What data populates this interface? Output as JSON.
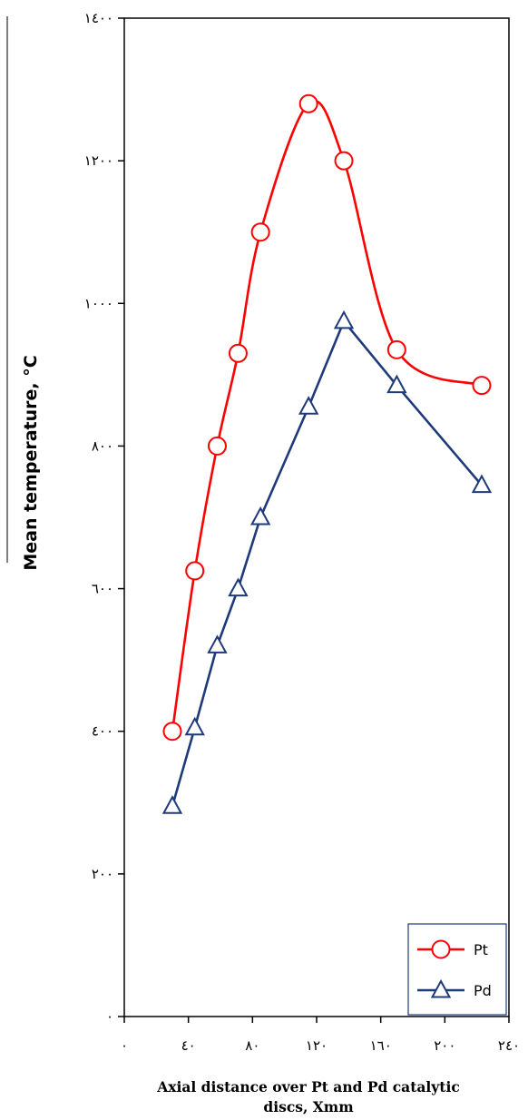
{
  "chart_data": {
    "type": "line",
    "title": "",
    "ylabel": "Mean temperature, °C",
    "xlabel_lines": [
      "Axial distance over Pt and Pd catalytic",
      "discs, Xmm"
    ],
    "xlim": [
      0,
      240
    ],
    "ylim": [
      0,
      1400
    ],
    "x_ticks": [
      0,
      40,
      80,
      120,
      160,
      200,
      240
    ],
    "x_tick_labels": [
      "٠",
      "٤٠",
      "٨٠",
      "١٢٠",
      "١٦٠",
      "٢٠٠",
      "٢٤٠"
    ],
    "y_ticks": [
      0,
      200,
      400,
      600,
      800,
      1000,
      1200,
      1400
    ],
    "y_tick_labels": [
      "٠",
      "٢٠٠",
      "٤٠٠",
      "٦٠٠",
      "٨٠٠",
      "١٠٠٠",
      "١٢٠٠",
      "١٤٠٠"
    ],
    "grid": false,
    "legend_position": "bottom-right",
    "series": [
      {
        "name": "Pt",
        "color": "#ff0000",
        "marker": "circle",
        "smooth": true,
        "x": [
          30,
          44,
          58,
          71,
          85,
          115,
          137,
          170,
          223
        ],
        "y": [
          400,
          625,
          800,
          930,
          1100,
          1280,
          1200,
          935,
          885
        ]
      },
      {
        "name": "Pd",
        "color": "#1f3a7a",
        "marker": "triangle",
        "smooth": false,
        "x": [
          30,
          44,
          58,
          71,
          85,
          115,
          137,
          170,
          223
        ],
        "y": [
          295,
          405,
          520,
          600,
          700,
          855,
          975,
          885,
          745
        ]
      }
    ]
  }
}
